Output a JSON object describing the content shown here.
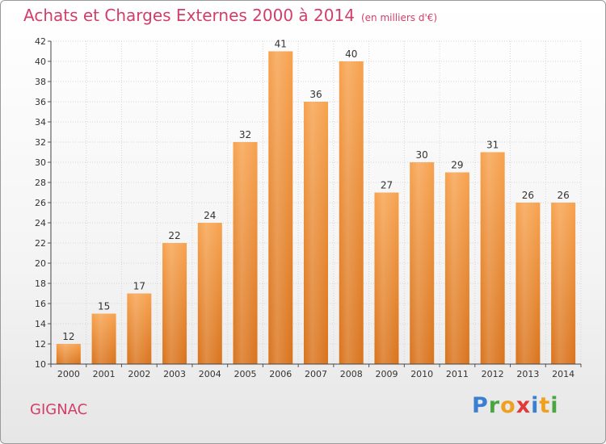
{
  "header": {
    "title": "Achats et Charges Externes 2000 à 2014",
    "subtitle": "(en milliers d'€)"
  },
  "commune": "GIGNAC",
  "brand": {
    "text": "Proxiti",
    "letters": [
      {
        "ch": "P",
        "color": "#3a7fd0"
      },
      {
        "ch": "r",
        "color": "#4aa641"
      },
      {
        "ch": "o",
        "color": "#f0a020"
      },
      {
        "ch": "x",
        "color": "#e03a3a"
      },
      {
        "ch": "i",
        "color": "#3a7fd0"
      },
      {
        "ch": "t",
        "color": "#f0a020"
      },
      {
        "ch": "i",
        "color": "#4aa641"
      }
    ]
  },
  "chart_data": {
    "type": "bar",
    "title": "Achats et Charges Externes 2000 à 2014",
    "subtitle": "(en milliers d'€)",
    "categories": [
      "2000",
      "2001",
      "2002",
      "2003",
      "2004",
      "2005",
      "2006",
      "2007",
      "2008",
      "2009",
      "2010",
      "2011",
      "2012",
      "2013",
      "2014"
    ],
    "values": [
      12,
      15,
      17,
      22,
      24,
      32,
      41,
      36,
      40,
      27,
      30,
      29,
      31,
      26,
      26
    ],
    "ylim": [
      10,
      42
    ],
    "yticks": [
      10,
      12,
      14,
      16,
      18,
      20,
      22,
      24,
      26,
      28,
      30,
      32,
      34,
      36,
      38,
      40,
      42
    ],
    "grid": true,
    "bar_color_top": "#f7a24e",
    "bar_color_bottom": "#d9731c"
  }
}
